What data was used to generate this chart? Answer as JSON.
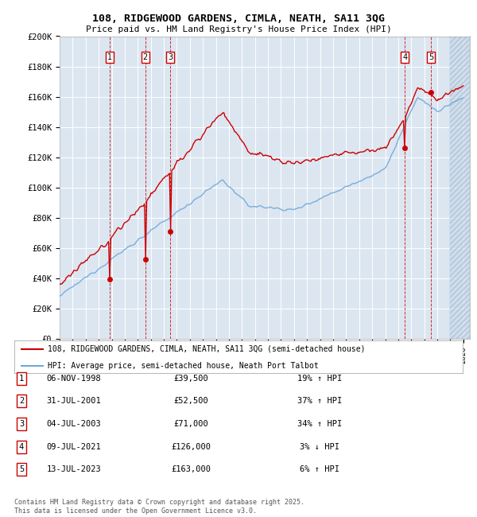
{
  "title": "108, RIDGEWOOD GARDENS, CIMLA, NEATH, SA11 3QG",
  "subtitle": "Price paid vs. HM Land Registry's House Price Index (HPI)",
  "y_min": 0,
  "y_max": 200000,
  "y_ticks": [
    0,
    20000,
    40000,
    60000,
    80000,
    100000,
    120000,
    140000,
    160000,
    180000,
    200000
  ],
  "y_tick_labels": [
    "£0",
    "£20K",
    "£40K",
    "£60K",
    "£80K",
    "£100K",
    "£120K",
    "£140K",
    "£160K",
    "£180K",
    "£200K"
  ],
  "sales": [
    {
      "date_num": 1998.85,
      "price": 39500,
      "label": "1"
    },
    {
      "date_num": 2001.58,
      "price": 52500,
      "label": "2"
    },
    {
      "date_num": 2003.51,
      "price": 71000,
      "label": "3"
    },
    {
      "date_num": 2021.52,
      "price": 126000,
      "label": "4"
    },
    {
      "date_num": 2023.53,
      "price": 163000,
      "label": "5"
    }
  ],
  "legend_line1": "108, RIDGEWOOD GARDENS, CIMLA, NEATH, SA11 3QG (semi-detached house)",
  "legend_line2": "HPI: Average price, semi-detached house, Neath Port Talbot",
  "table_rows": [
    {
      "num": "1",
      "date": "06-NOV-1998",
      "price": "£39,500",
      "hpi": "19% ↑ HPI"
    },
    {
      "num": "2",
      "date": "31-JUL-2001",
      "price": "£52,500",
      "hpi": "37% ↑ HPI"
    },
    {
      "num": "3",
      "date": "04-JUL-2003",
      "price": "£71,000",
      "hpi": "34% ↑ HPI"
    },
    {
      "num": "4",
      "date": "09-JUL-2021",
      "price": "£126,000",
      "hpi": "3% ↓ HPI"
    },
    {
      "num": "5",
      "date": "13-JUL-2023",
      "price": "£163,000",
      "hpi": "6% ↑ HPI"
    }
  ],
  "footnote": "Contains HM Land Registry data © Crown copyright and database right 2025.\nThis data is licensed under the Open Government Licence v3.0.",
  "bg_color": "#dce6f1",
  "hpi_color": "#6fa8d8",
  "price_color": "#cc0000",
  "vline_color": "#cc0000"
}
